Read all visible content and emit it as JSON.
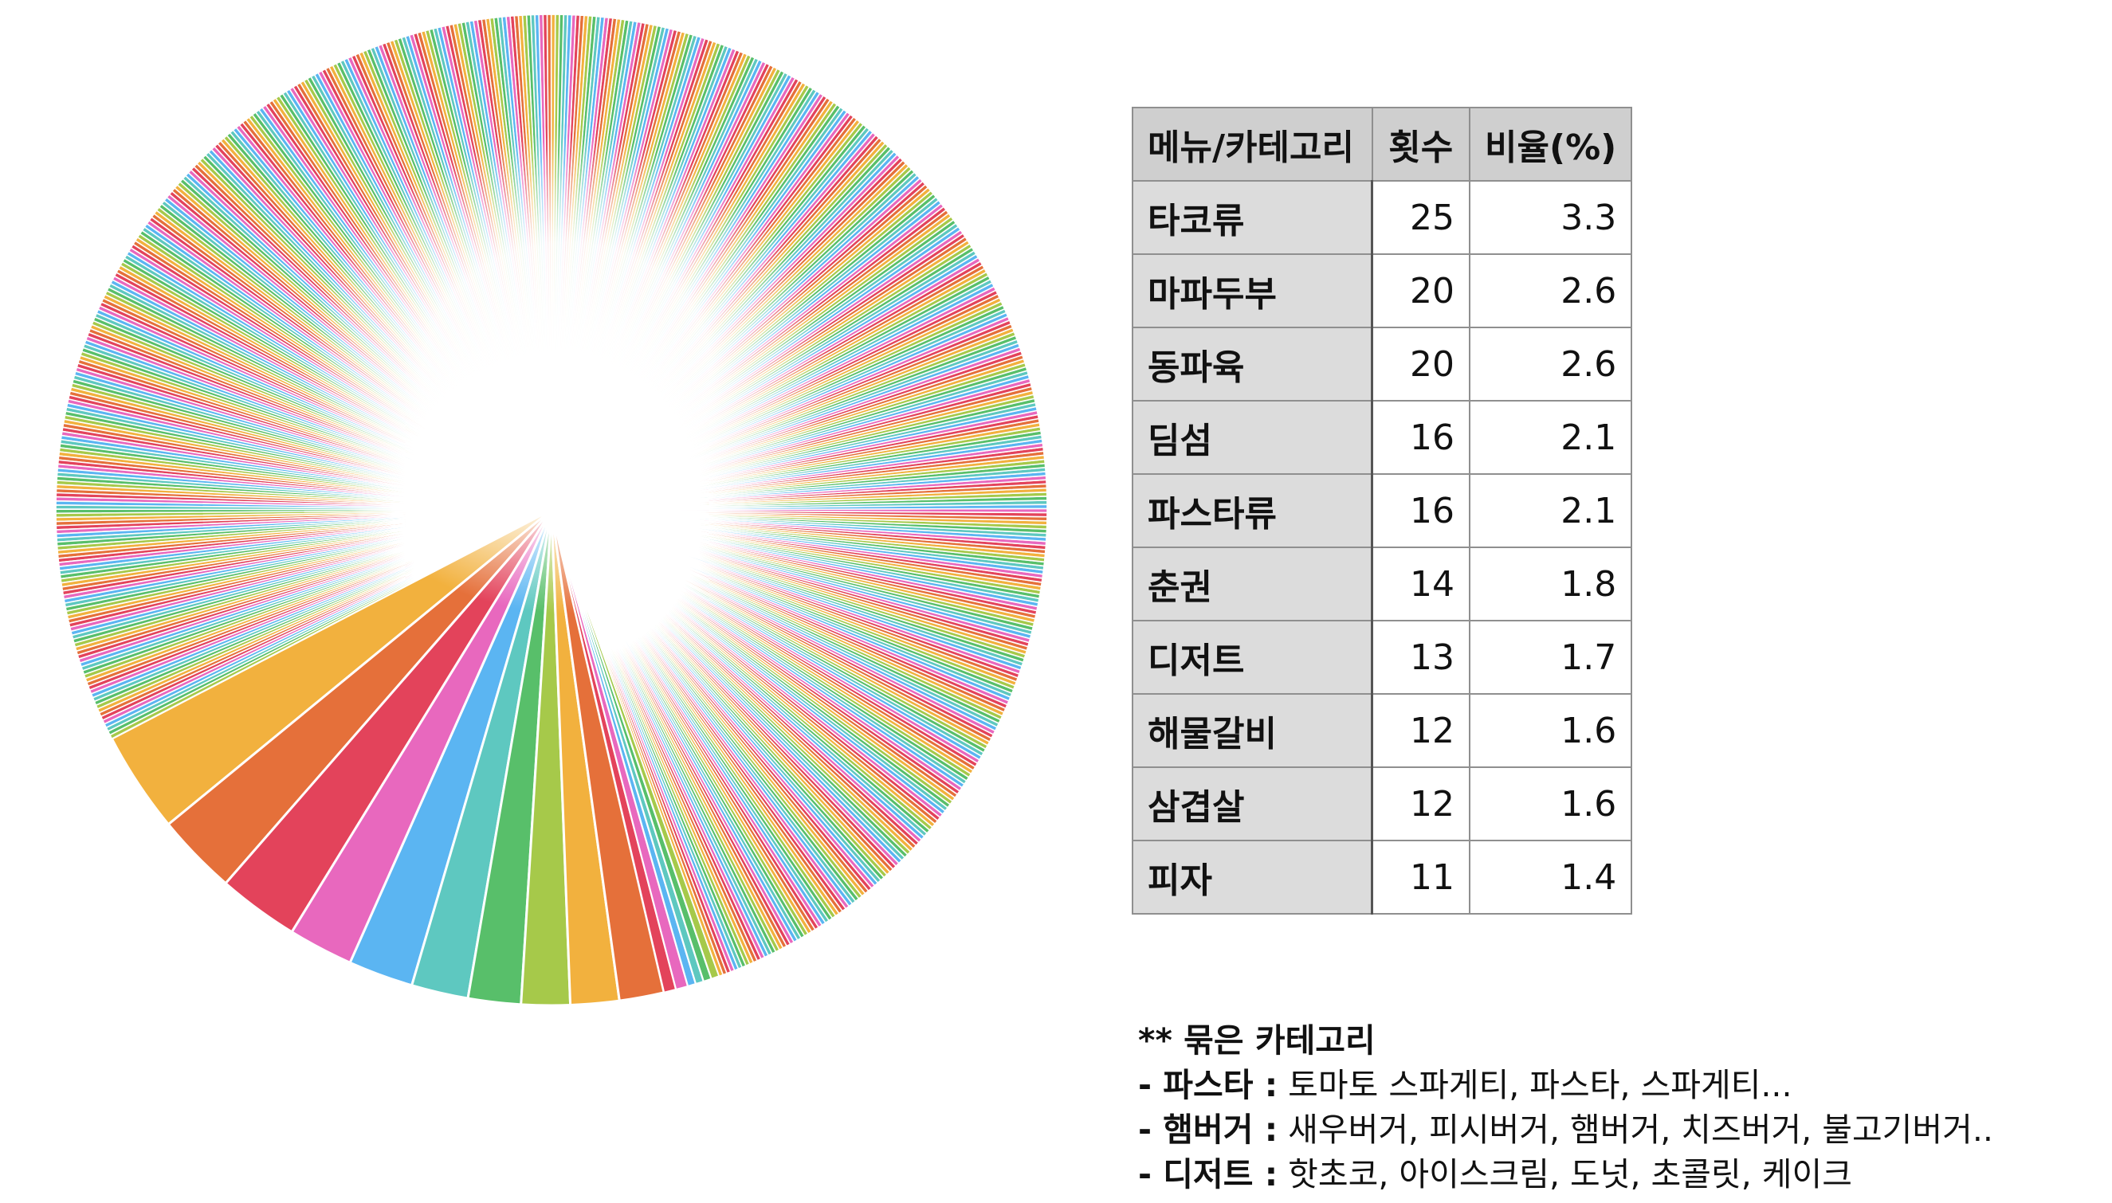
{
  "chart_data": {
    "type": "pie",
    "title": "",
    "slices_shown_largest": [
      {
        "label": "타코류",
        "value": 25
      },
      {
        "label": "마파두부",
        "value": 20
      },
      {
        "label": "동파육",
        "value": 20
      },
      {
        "label": "딤섬",
        "value": 16
      },
      {
        "label": "파스타류",
        "value": 16
      },
      {
        "label": "춘권",
        "value": 14
      },
      {
        "label": "디저트",
        "value": 13
      },
      {
        "label": "해물갈비",
        "value": 12
      },
      {
        "label": "삼겹살",
        "value": 12
      },
      {
        "label": "피자",
        "value": 11
      }
    ],
    "colors": [
      "#F2B13E",
      "#E5703A",
      "#E3435B",
      "#E868BE",
      "#5BB5F2",
      "#5EC8C0",
      "#58BF6A",
      "#A6C94A"
    ],
    "legend": "none"
  },
  "table": {
    "headers": [
      "메뉴/카테고리",
      "횟수",
      "비율(%)"
    ],
    "rows": [
      [
        "타코류",
        "25",
        "3.3"
      ],
      [
        "마파두부",
        "20",
        "2.6"
      ],
      [
        "동파육",
        "20",
        "2.6"
      ],
      [
        "딤섬",
        "16",
        "2.1"
      ],
      [
        "파스타류",
        "16",
        "2.1"
      ],
      [
        "춘권",
        "14",
        "1.8"
      ],
      [
        "디저트",
        "13",
        "1.7"
      ],
      [
        "해물갈비",
        "12",
        "1.6"
      ],
      [
        "삼겹살",
        "12",
        "1.6"
      ],
      [
        "피자",
        "11",
        "1.4"
      ]
    ]
  },
  "notes": {
    "heading": "** 묶은 카테고리",
    "items": [
      {
        "name": "- 파스타 :",
        "detail": " 토마토 스파게티, 파스타, 스파게티..."
      },
      {
        "name": "- 햄버거 :",
        "detail": " 새우버거, 피시버거, 햄버거, 치즈버거, 불고기버거.."
      },
      {
        "name": "- 디저트 :",
        "detail": " 핫초코, 아이스크림, 도넛, 초콜릿, 케이크"
      }
    ]
  }
}
